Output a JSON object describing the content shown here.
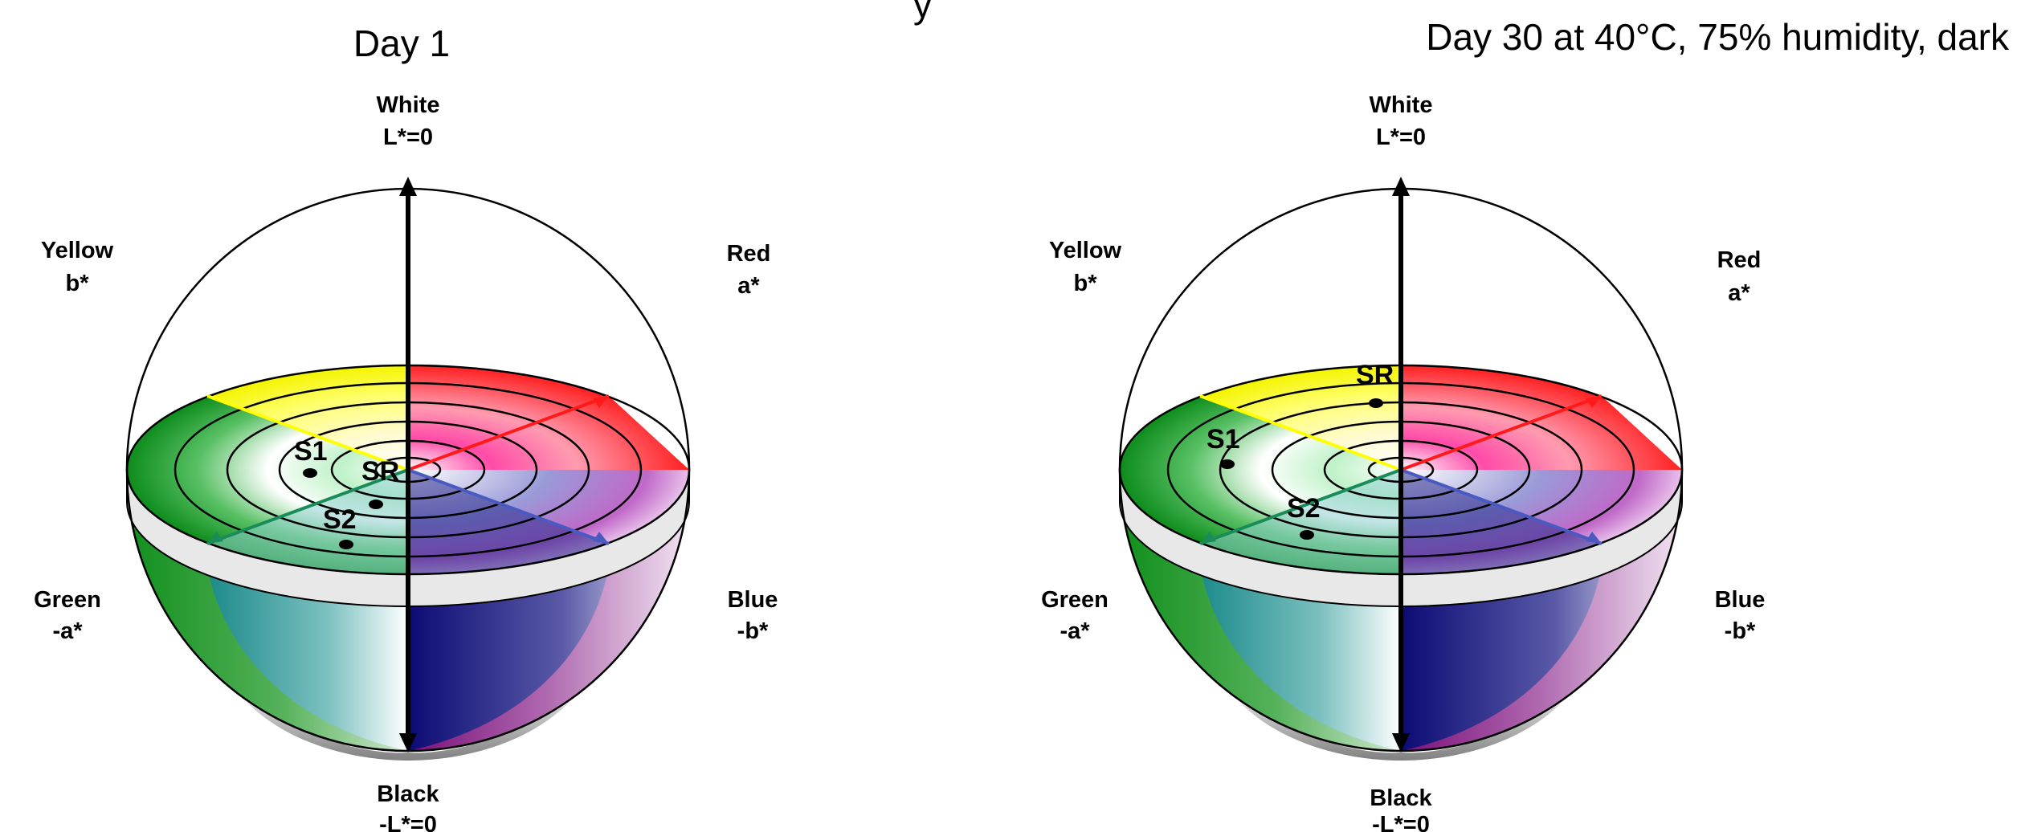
{
  "page": {
    "top_fragment": "y"
  },
  "panels": [
    {
      "title": "Day 1",
      "axes": {
        "top": "White",
        "top_sub": "L*=0",
        "bottom": "Black",
        "bottom_sub": "-L*=0",
        "upper_left": "Yellow",
        "upper_left_sub": "b*",
        "upper_right": "Red",
        "upper_right_sub": "a*",
        "lower_left": "Green",
        "lower_left_sub": "-a*",
        "lower_right": "Blue",
        "lower_right_sub": "-b*"
      },
      "points": [
        {
          "label": "S1"
        },
        {
          "label": "SR"
        },
        {
          "label": "S2"
        }
      ]
    },
    {
      "title": "Day 30 at 40°C, 75% humidity, dark",
      "axes": {
        "top": "White",
        "top_sub": "L*=0",
        "bottom": "Black",
        "bottom_sub": "-L*=0",
        "upper_left": "Yellow",
        "upper_left_sub": "b*",
        "upper_right": "Red",
        "upper_right_sub": "a*",
        "lower_left": "Green",
        "lower_left_sub": "-a*",
        "lower_right": "Blue",
        "lower_right_sub": "-b*"
      },
      "points": [
        {
          "label": "SR"
        },
        {
          "label": "S1"
        },
        {
          "label": "S2"
        }
      ]
    }
  ],
  "colors": {
    "yellow": "#ffff00",
    "red": "#ff1a1a",
    "green": "#0a8a1a",
    "blue": "#0a0a7a",
    "teal": "#1a8c8c",
    "purple": "#8a1a8a",
    "magenta": "#ff1f8f",
    "axis": "#000000"
  }
}
